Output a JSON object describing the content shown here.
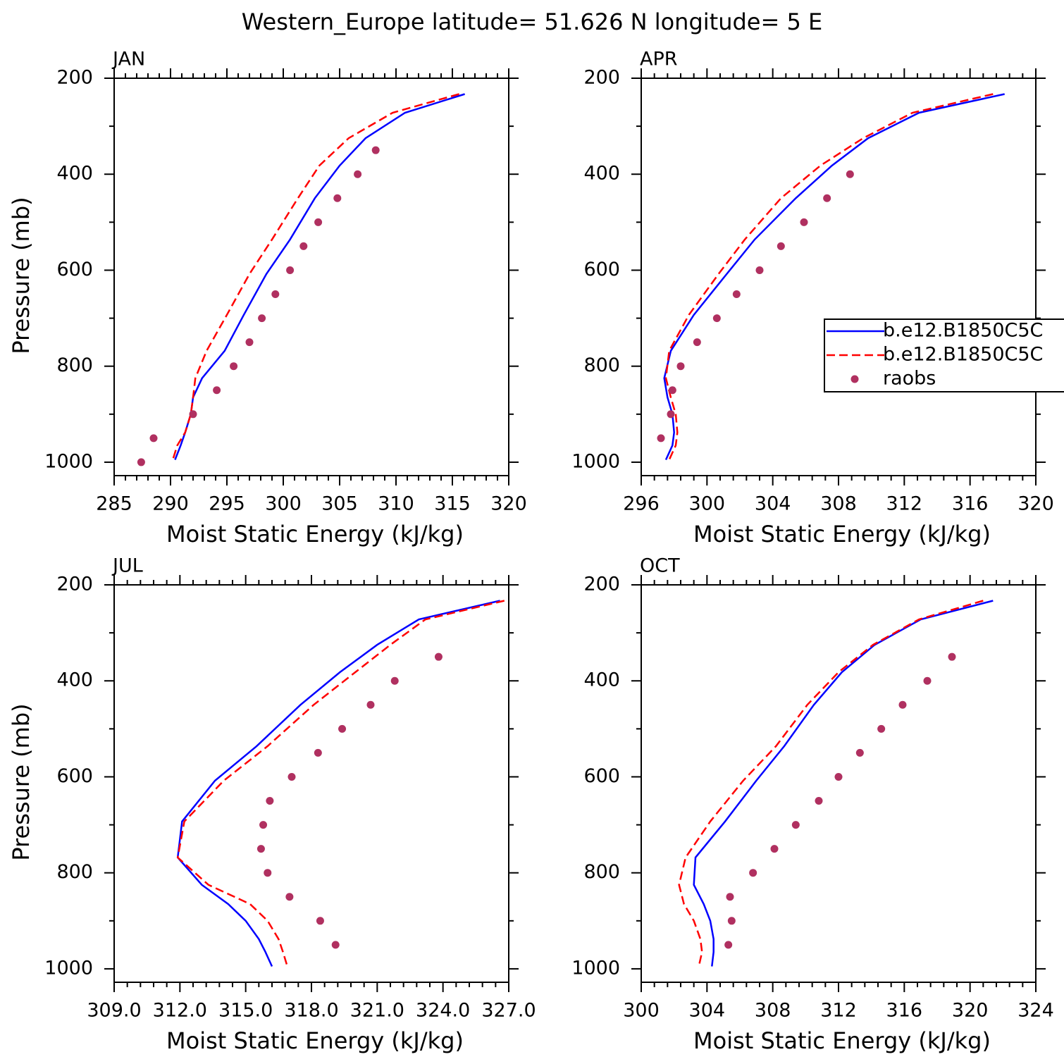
{
  "title": "Western_Europe  latitude= 51.626 N longitude= 5 E",
  "chart_data": [
    {
      "type": "line",
      "label": "JAN",
      "xlabel": "Moist Static Energy (kJ/kg)",
      "ylabel": "Pressure (mb)",
      "xlim": [
        285,
        320
      ],
      "xticks": [
        285,
        290,
        295,
        300,
        305,
        310,
        315,
        320
      ],
      "ylim": [
        200,
        1028
      ],
      "yticks": [
        200,
        400,
        600,
        800,
        1000
      ],
      "y_reversed": true,
      "series": [
        {
          "color": "#0000ff",
          "style": "solid",
          "x": [
            316.1,
            310.8,
            307.3,
            305.0,
            302.8,
            300.6,
            298.5,
            296.5,
            294.8,
            292.8,
            292.0,
            291.8,
            291.3,
            290.9,
            290.4
          ],
          "y": [
            233,
            272,
            325,
            382,
            450,
            536,
            608,
            693,
            768,
            825,
            865,
            900,
            938,
            965,
            995
          ]
        },
        {
          "color": "#ff0000",
          "style": "dashed",
          "x": [
            315.6,
            309.7,
            305.8,
            303.2,
            301.3,
            299.0,
            297.0,
            295.0,
            293.2,
            292.2,
            292.0,
            291.8,
            291.3,
            290.6,
            290.2
          ],
          "y": [
            233,
            272,
            325,
            382,
            450,
            536,
            608,
            693,
            768,
            825,
            865,
            900,
            938,
            965,
            995
          ]
        },
        {
          "color": "#b03060",
          "style": "dots",
          "x": [
            308.2,
            306.6,
            304.8,
            303.1,
            301.8,
            300.6,
            299.3,
            298.1,
            297.0,
            295.6,
            294.1,
            292.0,
            288.5,
            287.4
          ],
          "y": [
            350,
            400,
            450,
            500,
            550,
            600,
            650,
            700,
            750,
            800,
            850,
            900,
            950,
            1000
          ]
        }
      ]
    },
    {
      "type": "line",
      "label": "APR",
      "xlabel": "Moist Static Energy (kJ/kg)",
      "xlim": [
        296,
        320
      ],
      "xticks": [
        296,
        300,
        304,
        308,
        312,
        316,
        320
      ],
      "ylim": [
        200,
        1028
      ],
      "yticks": [
        200,
        400,
        600,
        800,
        1000
      ],
      "y_reversed": true,
      "legend": "right",
      "series": [
        {
          "name": "b.e12.B1850C5C",
          "color": "#0000ff",
          "style": "solid",
          "x": [
            318.1,
            312.9,
            309.8,
            307.6,
            305.4,
            302.9,
            301.2,
            299.2,
            297.8,
            297.4,
            297.6,
            297.9,
            298.0,
            297.9,
            297.5
          ],
          "y": [
            233,
            272,
            325,
            382,
            450,
            536,
            608,
            693,
            768,
            825,
            865,
            900,
            938,
            965,
            995
          ]
        },
        {
          "name": "b.e12.B1850C5C",
          "color": "#ff0000",
          "style": "dashed",
          "x": [
            317.4,
            312.5,
            309.5,
            306.9,
            304.5,
            302.3,
            300.7,
            298.9,
            297.7,
            297.5,
            297.8,
            298.1,
            298.2,
            298.1,
            297.7
          ],
          "y": [
            233,
            272,
            325,
            382,
            450,
            536,
            608,
            693,
            768,
            825,
            865,
            900,
            938,
            965,
            995
          ]
        },
        {
          "name": "raobs",
          "color": "#b03060",
          "style": "dots",
          "x": [
            308.7,
            307.3,
            305.9,
            304.5,
            303.2,
            301.8,
            300.6,
            299.4,
            298.4,
            297.9,
            297.8,
            297.2
          ],
          "y": [
            400,
            450,
            500,
            550,
            600,
            650,
            700,
            750,
            800,
            850,
            900,
            950
          ]
        }
      ]
    },
    {
      "type": "line",
      "label": "JUL",
      "xlabel": "Moist Static Energy (kJ/kg)",
      "ylabel": "Pressure (mb)",
      "xlim": [
        309,
        327
      ],
      "xticks": [
        {
          "value": 309,
          "label": "309.0"
        },
        {
          "value": 312,
          "label": "312.0"
        },
        {
          "value": 315,
          "label": "315.0"
        },
        {
          "value": 318,
          "label": "318.0"
        },
        {
          "value": 321,
          "label": "321.0"
        },
        {
          "value": 324,
          "label": "324.0"
        },
        {
          "value": 327,
          "label": "327.0"
        }
      ],
      "ylim": [
        200,
        1028
      ],
      "yticks": [
        200,
        400,
        600,
        800,
        1000
      ],
      "y_reversed": true,
      "series": [
        {
          "color": "#0000ff",
          "style": "solid",
          "x": [
            326.6,
            322.9,
            321.0,
            319.3,
            317.5,
            315.5,
            313.6,
            312.1,
            311.9,
            313.0,
            314.2,
            315.0,
            315.6,
            315.9,
            316.2
          ],
          "y": [
            233,
            272,
            325,
            382,
            450,
            536,
            608,
            693,
            768,
            825,
            865,
            900,
            938,
            965,
            995
          ]
        },
        {
          "color": "#ff0000",
          "style": "dashed",
          "x": [
            326.8,
            323.2,
            321.6,
            320.0,
            318.1,
            316.0,
            314.0,
            312.2,
            311.9,
            313.3,
            315.2,
            316.0,
            316.5,
            316.7,
            316.9
          ],
          "y": [
            233,
            272,
            325,
            382,
            450,
            536,
            608,
            693,
            768,
            825,
            865,
            900,
            938,
            965,
            995
          ]
        },
        {
          "color": "#b03060",
          "style": "dots",
          "x": [
            323.8,
            321.8,
            320.7,
            319.4,
            318.3,
            317.1,
            316.1,
            315.8,
            315.7,
            316.0,
            317.0,
            318.4,
            319.1
          ],
          "y": [
            350,
            400,
            450,
            500,
            550,
            600,
            650,
            700,
            750,
            800,
            850,
            900,
            950
          ]
        }
      ]
    },
    {
      "type": "line",
      "label": "OCT",
      "xlabel": "Moist Static Energy (kJ/kg)",
      "xlim": [
        300,
        324
      ],
      "xticks": [
        300,
        304,
        308,
        312,
        316,
        320,
        324
      ],
      "ylim": [
        200,
        1028
      ],
      "yticks": [
        200,
        400,
        600,
        800,
        1000
      ],
      "y_reversed": true,
      "series": [
        {
          "color": "#0000ff",
          "style": "solid",
          "x": [
            321.4,
            317.0,
            314.2,
            312.2,
            310.5,
            308.7,
            307.0,
            305.1,
            303.3,
            303.2,
            303.8,
            304.2,
            304.4,
            304.4,
            304.3
          ],
          "y": [
            233,
            272,
            325,
            382,
            450,
            536,
            608,
            693,
            768,
            825,
            865,
            900,
            938,
            965,
            995
          ]
        },
        {
          "color": "#ff0000",
          "style": "dashed",
          "x": [
            320.8,
            316.9,
            314.1,
            312.0,
            310.1,
            308.2,
            306.2,
            304.2,
            302.7,
            302.3,
            302.6,
            303.2,
            303.6,
            303.7,
            303.5
          ],
          "y": [
            233,
            272,
            325,
            382,
            450,
            536,
            608,
            693,
            768,
            825,
            865,
            900,
            938,
            965,
            995
          ]
        },
        {
          "color": "#b03060",
          "style": "dots",
          "x": [
            318.9,
            317.4,
            315.9,
            314.6,
            313.3,
            312.0,
            310.8,
            309.4,
            308.1,
            306.8,
            305.4,
            305.5,
            305.3
          ],
          "y": [
            350,
            400,
            450,
            500,
            550,
            600,
            650,
            700,
            750,
            800,
            850,
            900,
            950
          ]
        }
      ]
    }
  ]
}
